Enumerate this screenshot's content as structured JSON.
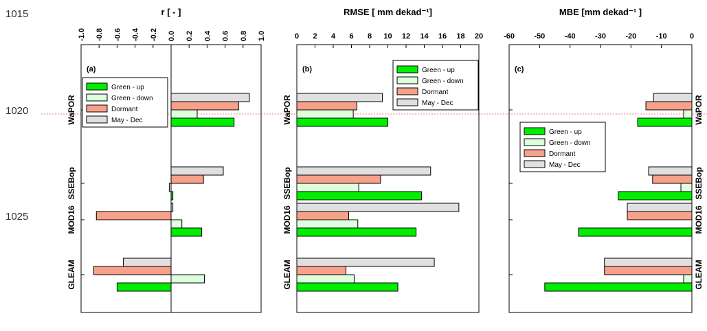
{
  "line_numbers": [
    "1015",
    "1020",
    "1025"
  ],
  "chart_data": [
    {
      "type": "bar",
      "orientation": "horizontal",
      "title": "r [ - ]",
      "panel_label": "(a)",
      "categories": [
        "WaPOR",
        "SSEBop",
        "MOD16",
        "GLEAM"
      ],
      "series": [
        {
          "name": "Green - up",
          "color": "#00ee00",
          "values": [
            0.7,
            0.02,
            0.34,
            -0.6
          ]
        },
        {
          "name": "Green - down",
          "color": "#ddffdd",
          "values": [
            0.29,
            -0.02,
            0.12,
            0.37
          ]
        },
        {
          "name": "Dormant",
          "color": "#f7a08a",
          "values": [
            0.75,
            0.36,
            -0.83,
            -0.86
          ]
        },
        {
          "name": "May - Dec",
          "color": "#e0e0e0",
          "values": [
            0.87,
            0.58,
            0.02,
            -0.53
          ]
        }
      ],
      "xlim": [
        -1,
        1
      ],
      "xticks": [
        {
          "value": -1,
          "label": "-1.0"
        },
        -0.8,
        -0.6,
        -0.4,
        -0.2,
        {
          "value": 0,
          "label": "0.0"
        },
        0.2,
        0.4,
        0.6,
        0.8,
        {
          "value": 1,
          "label": "1.0"
        }
      ],
      "legend": "upper-left"
    },
    {
      "type": "bar",
      "orientation": "horizontal",
      "title": "RMSE [ mm dekad⁻¹]",
      "panel_label": "(b)",
      "categories": [
        "WaPOR",
        "SSEBop",
        "MOD16",
        "GLEAM"
      ],
      "series": [
        {
          "name": "Green - up",
          "color": "#00ee00",
          "values": [
            10.0,
            13.7,
            13.1,
            11.1
          ]
        },
        {
          "name": "Green - down",
          "color": "#ddffdd",
          "values": [
            6.2,
            6.8,
            6.7,
            6.3
          ]
        },
        {
          "name": "Dormant",
          "color": "#f7a08a",
          "values": [
            6.6,
            9.2,
            5.7,
            5.4
          ]
        },
        {
          "name": "May - Dec",
          "color": "#e0e0e0",
          "values": [
            9.4,
            14.7,
            17.8,
            15.1
          ]
        }
      ],
      "xlim": [
        0,
        20
      ],
      "xticks": [
        0,
        2,
        4,
        6,
        8,
        10,
        12,
        14,
        16,
        18,
        20
      ],
      "legend": "upper-right"
    },
    {
      "type": "bar",
      "orientation": "horizontal",
      "title": "MBE [mm dekad⁻¹ ]",
      "panel_label": "(c)",
      "categories": [
        "WaPOR",
        "SSEBop",
        "MOD16",
        "GLEAM"
      ],
      "series": [
        {
          "name": "Green - up",
          "color": "#00ee00",
          "values": [
            -17.8,
            -24.2,
            -37.2,
            -48.3
          ]
        },
        {
          "name": "Green - down",
          "color": "#ddffdd",
          "values": [
            -2.7,
            -3.6,
            0,
            -2.7
          ]
        },
        {
          "name": "Dormant",
          "color": "#f7a08a",
          "values": [
            -15.1,
            -12.9,
            -21.2,
            -28.7
          ]
        },
        {
          "name": "May - Dec",
          "color": "#e0e0e0",
          "values": [
            -12.6,
            -14.2,
            -21.2,
            -28.7
          ]
        }
      ],
      "xlim": [
        -60,
        0
      ],
      "xticks": [
        -60,
        -50,
        -40,
        -30,
        -20,
        -10,
        0
      ],
      "legend": "center-left"
    }
  ]
}
